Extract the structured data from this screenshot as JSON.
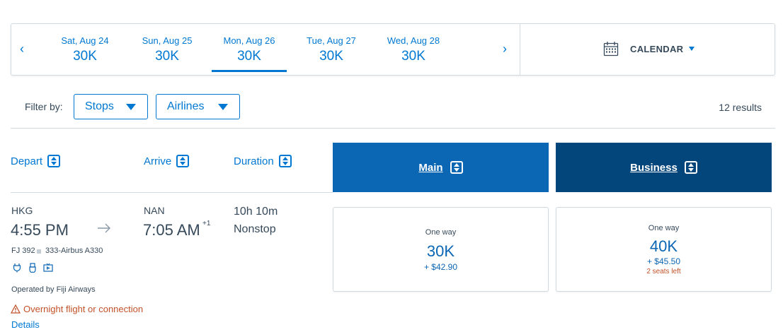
{
  "date_strip": {
    "prev_label": "‹",
    "next_label": "›",
    "dates": [
      {
        "label": "Sat, Aug 24",
        "price": "30K"
      },
      {
        "label": "Sun, Aug 25",
        "price": "30K"
      },
      {
        "label": "Mon, Aug 26",
        "price": "30K",
        "selected": true
      },
      {
        "label": "Tue, Aug 27",
        "price": "30K"
      },
      {
        "label": "Wed, Aug 28",
        "price": "30K"
      }
    ],
    "calendar_label": "CALENDAR"
  },
  "filters": {
    "label": "Filter by:",
    "stops": "Stops",
    "airlines": "Airlines",
    "results": "12 results"
  },
  "columns": {
    "depart": "Depart",
    "arrive": "Arrive",
    "duration": "Duration",
    "main": "Main",
    "business": "Business"
  },
  "flight": {
    "origin": "HKG",
    "depart_time": "4:55 PM",
    "destination": "NAN",
    "arrive_time": "7:05 AM",
    "day_offset": "+1",
    "duration": "10h 10m",
    "stops": "Nonstop",
    "flight_number": "FJ 392",
    "aircraft": "333-Airbus A330",
    "amenities": [
      "power-icon",
      "usb-icon",
      "entertainment-icon"
    ],
    "operated_by": "Operated by Fiji Airways",
    "warning": "Overnight flight or connection",
    "details": "Details"
  },
  "fares": {
    "main": {
      "label": "One way",
      "miles": "30K",
      "tax": "+ $42.90"
    },
    "business": {
      "label": "One way",
      "miles": "40K",
      "tax": "+ $45.50",
      "seats": "2 seats left"
    }
  },
  "colors": {
    "accent": "#0078d2",
    "main_header": "#0b66b3",
    "business_header": "#02467c",
    "warning": "#c3522a"
  }
}
